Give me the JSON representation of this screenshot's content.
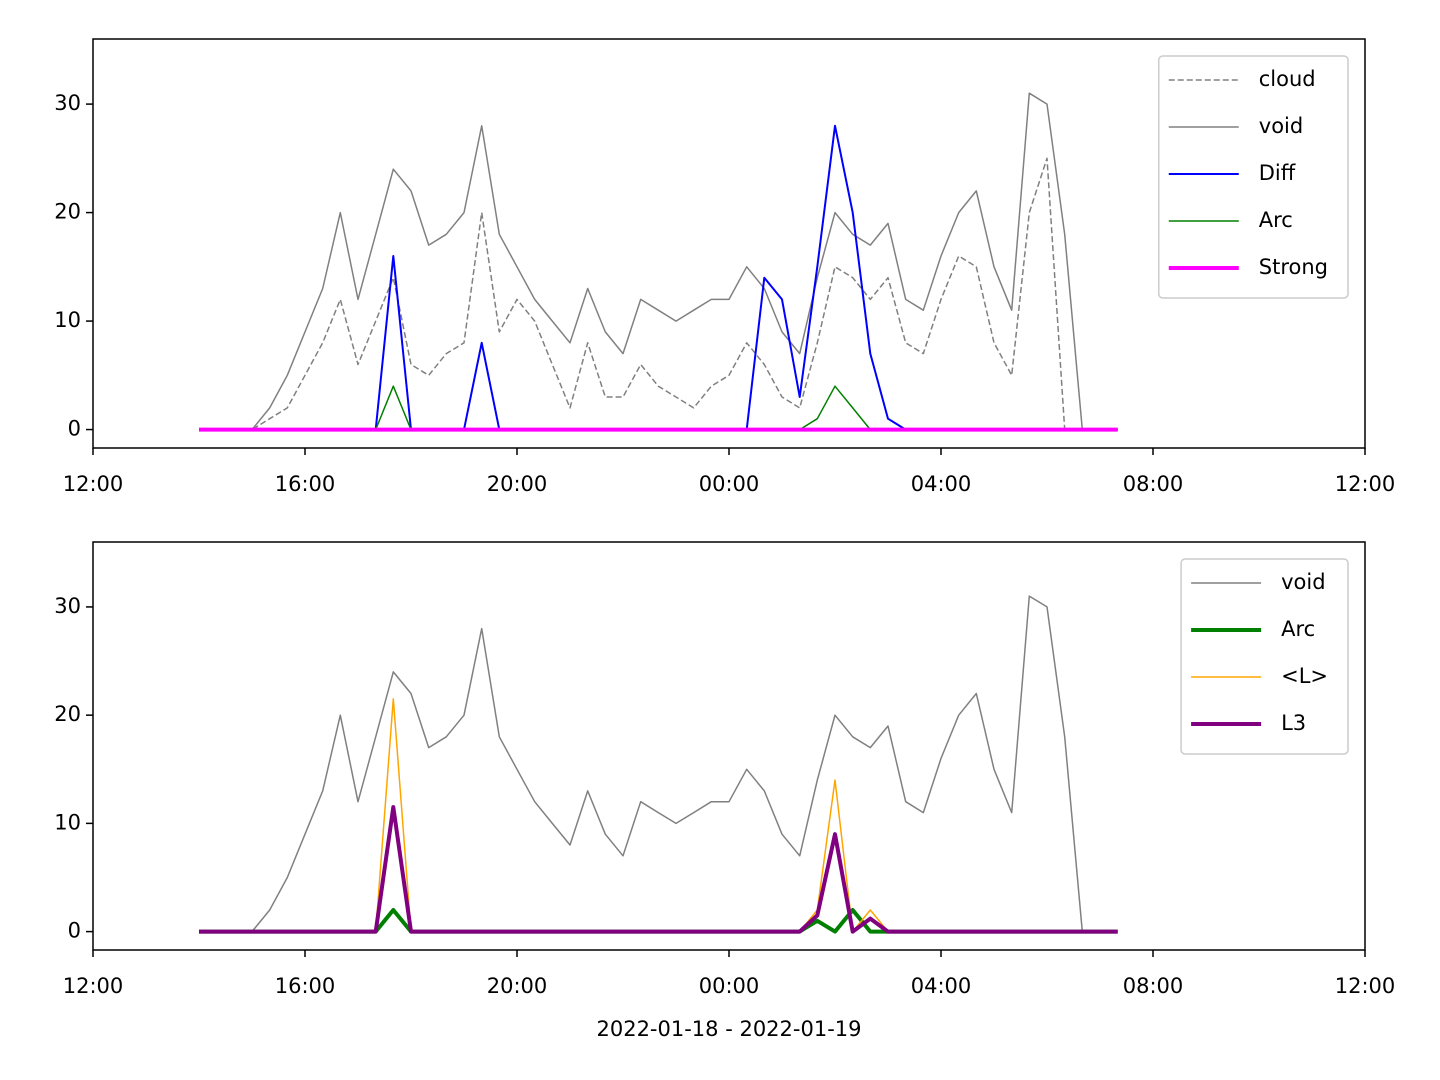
{
  "chart_data": [
    {
      "type": "line",
      "x": [
        "2022-01-18T14:00",
        "2022-01-18T14:20",
        "2022-01-18T14:40",
        "2022-01-18T15:00",
        "2022-01-18T15:20",
        "2022-01-18T15:40",
        "2022-01-18T16:00",
        "2022-01-18T16:20",
        "2022-01-18T16:40",
        "2022-01-18T17:00",
        "2022-01-18T17:20",
        "2022-01-18T17:40",
        "2022-01-18T18:00",
        "2022-01-18T18:20",
        "2022-01-18T18:40",
        "2022-01-18T19:00",
        "2022-01-18T19:20",
        "2022-01-18T19:40",
        "2022-01-18T20:00",
        "2022-01-18T20:20",
        "2022-01-18T20:40",
        "2022-01-18T21:00",
        "2022-01-18T21:20",
        "2022-01-18T21:40",
        "2022-01-18T22:00",
        "2022-01-18T22:20",
        "2022-01-18T22:40",
        "2022-01-18T23:00",
        "2022-01-18T23:20",
        "2022-01-18T23:40",
        "2022-01-19T00:00",
        "2022-01-19T00:20",
        "2022-01-19T00:40",
        "2022-01-19T01:00",
        "2022-01-19T01:20",
        "2022-01-19T01:40",
        "2022-01-19T02:00",
        "2022-01-19T02:20",
        "2022-01-19T02:40",
        "2022-01-19T03:00",
        "2022-01-19T03:20",
        "2022-01-19T03:40",
        "2022-01-19T04:00",
        "2022-01-19T04:20",
        "2022-01-19T04:40",
        "2022-01-19T05:00",
        "2022-01-19T05:20",
        "2022-01-19T05:40",
        "2022-01-19T06:00",
        "2022-01-19T06:20",
        "2022-01-19T06:40",
        "2022-01-19T07:00",
        "2022-01-19T07:20"
      ],
      "xlim": [
        "2022-01-18T12:00",
        "2022-01-19T12:00"
      ],
      "xticks": [
        {
          "value": "2022-01-18T12:00",
          "label": "12:00"
        },
        {
          "value": "2022-01-18T16:00",
          "label": "16:00"
        },
        {
          "value": "2022-01-18T20:00",
          "label": "20:00"
        },
        {
          "value": "2022-01-19T00:00",
          "label": "00:00"
        },
        {
          "value": "2022-01-19T04:00",
          "label": "04:00"
        },
        {
          "value": "2022-01-19T08:00",
          "label": "08:00"
        },
        {
          "value": "2022-01-19T12:00",
          "label": "12:00"
        }
      ],
      "ylim": [
        -1.7,
        36
      ],
      "yticks": [
        0,
        10,
        20,
        30
      ],
      "legend": "upper right",
      "series": [
        {
          "name": "cloud",
          "color": "#808080",
          "linestyle": "dashed",
          "linewidth": 1.5,
          "values": [
            0,
            0,
            0,
            0,
            1,
            2,
            5,
            8,
            12,
            6,
            10,
            14,
            6,
            5,
            7,
            8,
            20,
            9,
            12,
            10,
            6,
            2,
            8,
            3,
            3,
            6,
            4,
            3,
            2,
            4,
            5,
            8,
            6,
            3,
            2,
            8,
            15,
            14,
            12,
            14,
            8,
            7,
            12,
            16,
            15,
            8,
            5,
            20,
            25,
            0,
            0,
            0,
            0
          ]
        },
        {
          "name": "void",
          "color": "#808080",
          "linestyle": "solid",
          "linewidth": 1.5,
          "values": [
            0,
            0,
            0,
            0,
            2,
            5,
            9,
            13,
            20,
            12,
            18,
            24,
            22,
            17,
            18,
            20,
            28,
            18,
            15,
            12,
            10,
            8,
            13,
            9,
            7,
            12,
            11,
            10,
            11,
            12,
            12,
            15,
            13,
            9,
            7,
            14,
            20,
            18,
            17,
            19,
            12,
            11,
            16,
            20,
            22,
            15,
            11,
            31,
            30,
            18,
            0,
            0,
            0
          ]
        },
        {
          "name": "Diff",
          "color": "#0000ff",
          "linestyle": "solid",
          "linewidth": 2,
          "values": [
            0,
            0,
            0,
            0,
            0,
            0,
            0,
            0,
            0,
            0,
            0,
            16,
            0,
            0,
            0,
            0,
            8,
            0,
            0,
            0,
            0,
            0,
            0,
            0,
            0,
            0,
            0,
            0,
            0,
            0,
            0,
            0,
            14,
            12,
            3,
            15,
            28,
            20,
            7,
            1,
            0,
            0,
            0,
            0,
            0,
            0,
            0,
            0,
            0,
            0,
            0,
            0,
            0
          ]
        },
        {
          "name": "Arc",
          "color": "#008000",
          "linestyle": "solid",
          "linewidth": 1.5,
          "values": [
            0,
            0,
            0,
            0,
            0,
            0,
            0,
            0,
            0,
            0,
            0,
            4,
            0,
            0,
            0,
            0,
            0,
            0,
            0,
            0,
            0,
            0,
            0,
            0,
            0,
            0,
            0,
            0,
            0,
            0,
            0,
            0,
            0,
            0,
            0,
            1,
            4,
            2,
            0,
            0,
            0,
            0,
            0,
            0,
            0,
            0,
            0,
            0,
            0,
            0,
            0,
            0,
            0
          ]
        },
        {
          "name": "Strong",
          "color": "#ff00ff",
          "linestyle": "solid",
          "linewidth": 4,
          "values": [
            0,
            0,
            0,
            0,
            0,
            0,
            0,
            0,
            0,
            0,
            0,
            0,
            0,
            0,
            0,
            0,
            0,
            0,
            0,
            0,
            0,
            0,
            0,
            0,
            0,
            0,
            0,
            0,
            0,
            0,
            0,
            0,
            0,
            0,
            0,
            0,
            0,
            0,
            0,
            0,
            0,
            0,
            0,
            0,
            0,
            0,
            0,
            0,
            0,
            0,
            0,
            0,
            0
          ]
        }
      ]
    },
    {
      "type": "line",
      "x": [
        "2022-01-18T14:00",
        "2022-01-18T14:20",
        "2022-01-18T14:40",
        "2022-01-18T15:00",
        "2022-01-18T15:20",
        "2022-01-18T15:40",
        "2022-01-18T16:00",
        "2022-01-18T16:20",
        "2022-01-18T16:40",
        "2022-01-18T17:00",
        "2022-01-18T17:20",
        "2022-01-18T17:40",
        "2022-01-18T18:00",
        "2022-01-18T18:20",
        "2022-01-18T18:40",
        "2022-01-18T19:00",
        "2022-01-18T19:20",
        "2022-01-18T19:40",
        "2022-01-18T20:00",
        "2022-01-18T20:20",
        "2022-01-18T20:40",
        "2022-01-18T21:00",
        "2022-01-18T21:20",
        "2022-01-18T21:40",
        "2022-01-18T22:00",
        "2022-01-18T22:20",
        "2022-01-18T22:40",
        "2022-01-18T23:00",
        "2022-01-18T23:20",
        "2022-01-18T23:40",
        "2022-01-19T00:00",
        "2022-01-19T00:20",
        "2022-01-19T00:40",
        "2022-01-19T01:00",
        "2022-01-19T01:20",
        "2022-01-19T01:40",
        "2022-01-19T02:00",
        "2022-01-19T02:20",
        "2022-01-19T02:40",
        "2022-01-19T03:00",
        "2022-01-19T03:20",
        "2022-01-19T03:40",
        "2022-01-19T04:00",
        "2022-01-19T04:20",
        "2022-01-19T04:40",
        "2022-01-19T05:00",
        "2022-01-19T05:20",
        "2022-01-19T05:40",
        "2022-01-19T06:00",
        "2022-01-19T06:20",
        "2022-01-19T06:40",
        "2022-01-19T07:00",
        "2022-01-19T07:20"
      ],
      "xlim": [
        "2022-01-18T12:00",
        "2022-01-19T12:00"
      ],
      "xticks": [
        {
          "value": "2022-01-18T12:00",
          "label": "12:00"
        },
        {
          "value": "2022-01-18T16:00",
          "label": "16:00"
        },
        {
          "value": "2022-01-18T20:00",
          "label": "20:00"
        },
        {
          "value": "2022-01-19T00:00",
          "label": "00:00"
        },
        {
          "value": "2022-01-19T04:00",
          "label": "04:00"
        },
        {
          "value": "2022-01-19T08:00",
          "label": "08:00"
        },
        {
          "value": "2022-01-19T12:00",
          "label": "12:00"
        }
      ],
      "xlabel": "2022-01-18 - 2022-01-19",
      "ylim": [
        -1.7,
        36
      ],
      "yticks": [
        0,
        10,
        20,
        30
      ],
      "legend": "upper right",
      "series": [
        {
          "name": "void",
          "color": "#808080",
          "linestyle": "solid",
          "linewidth": 1.5,
          "values": [
            0,
            0,
            0,
            0,
            2,
            5,
            9,
            13,
            20,
            12,
            18,
            24,
            22,
            17,
            18,
            20,
            28,
            18,
            15,
            12,
            10,
            8,
            13,
            9,
            7,
            12,
            11,
            10,
            11,
            12,
            12,
            15,
            13,
            9,
            7,
            14,
            20,
            18,
            17,
            19,
            12,
            11,
            16,
            20,
            22,
            15,
            11,
            31,
            30,
            18,
            0,
            0,
            0
          ]
        },
        {
          "name": "Arc",
          "color": "#008000",
          "linestyle": "solid",
          "linewidth": 4,
          "values": [
            0,
            0,
            0,
            0,
            0,
            0,
            0,
            0,
            0,
            0,
            0,
            2,
            0,
            0,
            0,
            0,
            0,
            0,
            0,
            0,
            0,
            0,
            0,
            0,
            0,
            0,
            0,
            0,
            0,
            0,
            0,
            0,
            0,
            0,
            0,
            1,
            0,
            2,
            0,
            0,
            0,
            0,
            0,
            0,
            0,
            0,
            0,
            0,
            0,
            0,
            0,
            0,
            0
          ]
        },
        {
          "name": "<L>",
          "color": "#ffa500",
          "linestyle": "solid",
          "linewidth": 1.5,
          "values": [
            0,
            0,
            0,
            0,
            0,
            0,
            0,
            0,
            0,
            0,
            0,
            21.5,
            0,
            0,
            0,
            0,
            0,
            0,
            0,
            0,
            0,
            0,
            0,
            0,
            0,
            0,
            0,
            0,
            0,
            0,
            0,
            0,
            0,
            0,
            0,
            2,
            14,
            0,
            2,
            0,
            0,
            0,
            0,
            0,
            0,
            0,
            0,
            0,
            0,
            0,
            0,
            0,
            0
          ]
        },
        {
          "name": "L3",
          "color": "#800080",
          "linestyle": "solid",
          "linewidth": 4,
          "values": [
            0,
            0,
            0,
            0,
            0,
            0,
            0,
            0,
            0,
            0,
            0,
            11.5,
            0,
            0,
            0,
            0,
            0,
            0,
            0,
            0,
            0,
            0,
            0,
            0,
            0,
            0,
            0,
            0,
            0,
            0,
            0,
            0,
            0,
            0,
            0,
            1.5,
            9,
            0,
            1.2,
            0,
            0,
            0,
            0,
            0,
            0,
            0,
            0,
            0,
            0,
            0,
            0,
            0,
            0
          ]
        }
      ]
    }
  ]
}
